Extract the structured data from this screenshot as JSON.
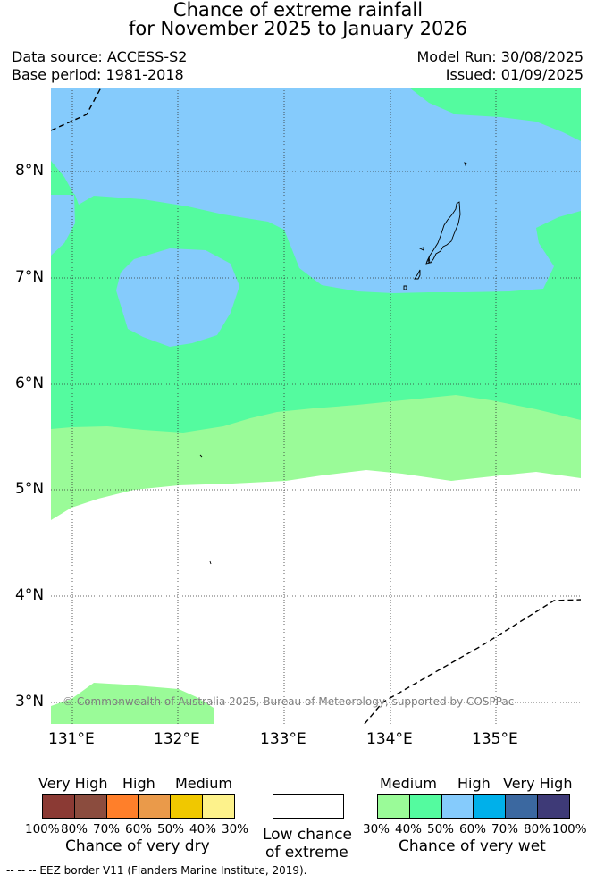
{
  "title_line1": "Chance of extreme rainfall",
  "title_line2": "for November 2025 to January 2026",
  "data_source": "Data source: ACCESS-S2",
  "base_period": "Base period: 1981-2018",
  "model_run": "Model Run: 30/08/2025",
  "issued": "Issued: 01/09/2025",
  "copyright": "© Commonwealth of Australia 2025, Bureau of Meteorology, supported by COSPPac",
  "lat_labels": [
    "8°N",
    "7°N",
    "6°N",
    "5°N",
    "4°N",
    "3°N"
  ],
  "lon_labels": [
    "131°E",
    "132°E",
    "133°E",
    "134°E",
    "135°E"
  ],
  "colors": {
    "very_dry_100_80": "#8b3a34",
    "very_dry_80_70": "#8b4c3e",
    "dry_70_60": "#ff7f2a",
    "dry_60_50": "#ea9a4a",
    "dry_50_40": "#f0c800",
    "dry_40_30": "#fdf28b",
    "low": "#ffffff",
    "wet_30_40": "#9afb98",
    "wet_40_50": "#54fb9f",
    "wet_50_60": "#85cbfc",
    "wet_60_70": "#00b0ea",
    "wet_70_80": "#3b68a0",
    "wet_80_100": "#3e3a77"
  },
  "legend_dry": {
    "categories": [
      "Very High",
      "High",
      "Medium"
    ],
    "percents": [
      "100%",
      "80%",
      "70%",
      "60%",
      "50%",
      "40%",
      "30%"
    ],
    "caption": "Chance of very dry"
  },
  "legend_low": {
    "line1": "Low chance",
    "line2": "of extreme"
  },
  "legend_wet": {
    "categories": [
      "Medium",
      "High",
      "Very High"
    ],
    "percents": [
      "30%",
      "40%",
      "50%",
      "60%",
      "70%",
      "80%",
      "100%"
    ],
    "caption": "Chance of very wet"
  },
  "footer": "--  --  -- EEZ border V11 (Flanders Marine Institute, 2019)."
}
